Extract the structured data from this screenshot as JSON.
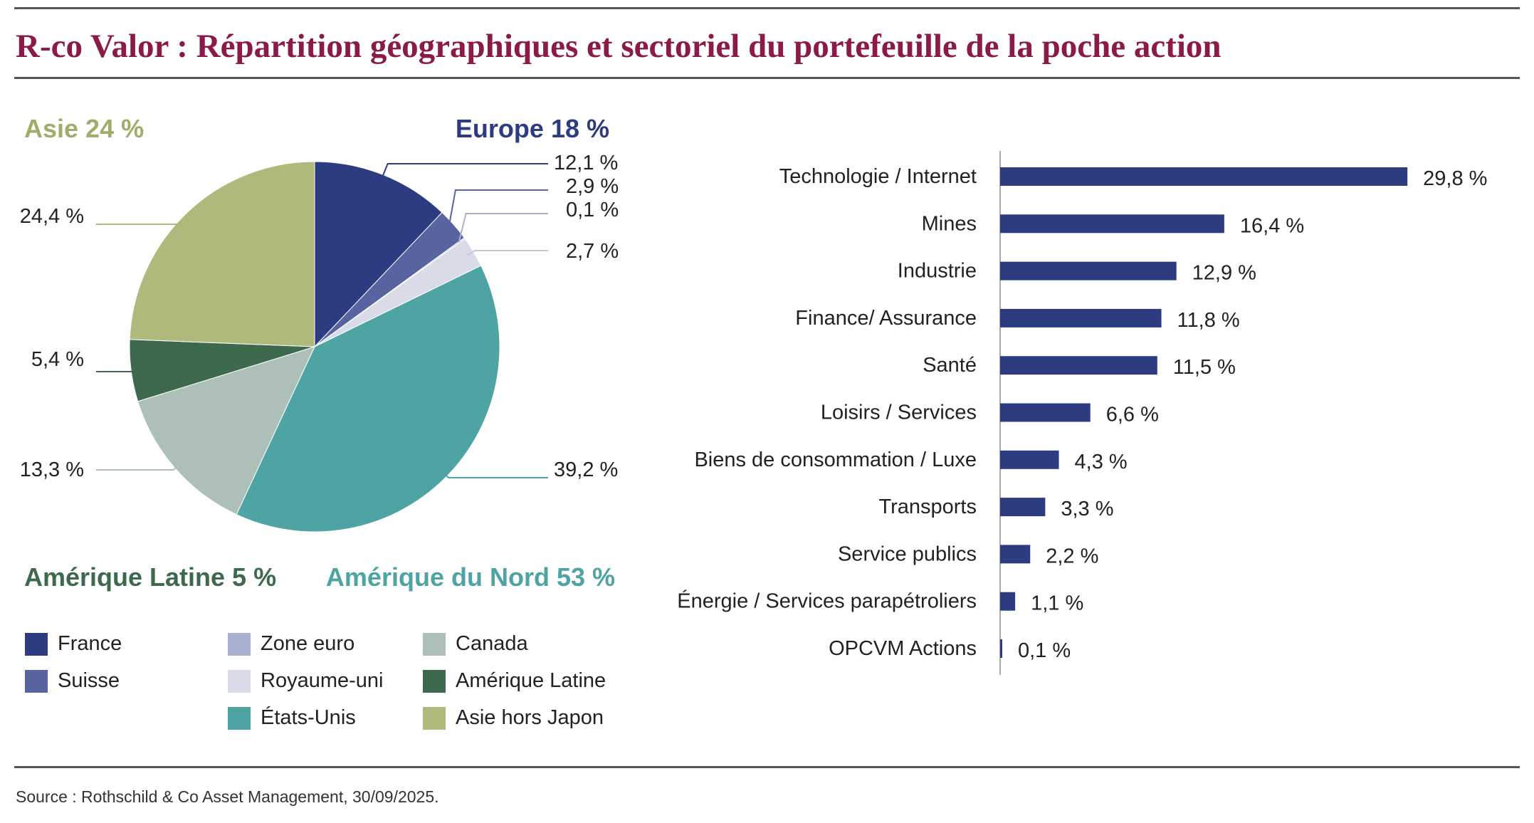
{
  "title": "R-co Valor : Répartition géographiques et sectoriel du portefeuille de la poche action",
  "source": "Source : Rothschild & Co Asset Management, 30/09/2025.",
  "colors": {
    "title": "#8b1a47",
    "asie": "#a3ab6b",
    "europe": "#2d3b80",
    "amerique_latine": "#3d6a4c",
    "amerique_nord": "#4ea3a3",
    "bar": "#2d3b80"
  },
  "chart_data": [
    {
      "type": "pie",
      "title": "",
      "region_labels": {
        "asie": "Asie 24 %",
        "europe": "Europe 18 %",
        "amerique_latine": "Amérique Latine 5 %",
        "amerique_nord": "Amérique du Nord 53 %"
      },
      "slices": [
        {
          "name": "France",
          "value": 12.1,
          "label": "12,1 %",
          "color": "#2d3b80"
        },
        {
          "name": "Suisse",
          "value": 2.9,
          "label": "2,9 %",
          "color": "#5764a0"
        },
        {
          "name": "Zone euro",
          "value": 0.1,
          "label": "0,1 %",
          "color": "#a9b0d0"
        },
        {
          "name": "Royaume-uni",
          "value": 2.7,
          "label": "2,7 %",
          "color": "#d9dbe9"
        },
        {
          "name": "États-Unis",
          "value": 39.2,
          "label": "39,2 %",
          "color": "#4ea3a3"
        },
        {
          "name": "Canada",
          "value": 13.3,
          "label": "13,3 %",
          "color": "#acc0b9"
        },
        {
          "name": "Amérique Latine",
          "value": 5.4,
          "label": "5,4 %",
          "color": "#3d6a4c"
        },
        {
          "name": "Asie hors Japon",
          "value": 24.4,
          "label": "24,4 %",
          "color": "#b0b97c"
        }
      ],
      "legend": [
        {
          "label": "France",
          "color": "#2d3b80"
        },
        {
          "label": "Suisse",
          "color": "#5764a0"
        },
        {
          "label": "Zone euro",
          "color": "#a9b0d0"
        },
        {
          "label": "Royaume-uni",
          "color": "#d9dbe9"
        },
        {
          "label": "États-Unis",
          "color": "#4ea3a3"
        },
        {
          "label": "Canada",
          "color": "#acc0b9"
        },
        {
          "label": "Amérique Latine",
          "color": "#3d6a4c"
        },
        {
          "label": "Asie hors Japon",
          "color": "#b0b97c"
        }
      ]
    },
    {
      "type": "bar",
      "orientation": "horizontal",
      "categories": [
        "Technologie / Internet",
        "Mines",
        "Industrie",
        "Finance/ Assurance",
        "Santé",
        "Loisirs / Services",
        "Biens de consommation / Luxe",
        "Transports",
        "Service publics",
        "Énergie / Services parapétroliers",
        "OPCVM Actions"
      ],
      "values": [
        29.8,
        16.4,
        12.9,
        11.8,
        11.5,
        6.6,
        4.3,
        3.3,
        2.2,
        1.1,
        0.1
      ],
      "value_labels": [
        "29,8 %",
        "16,4 %",
        "12,9 %",
        "11,8 %",
        "11,5 %",
        "6,6 %",
        "4,3 %",
        "3,3 %",
        "2,2 %",
        "1,1 %",
        "0,1 %"
      ],
      "xlim": [
        0,
        30
      ],
      "grid": false
    }
  ]
}
